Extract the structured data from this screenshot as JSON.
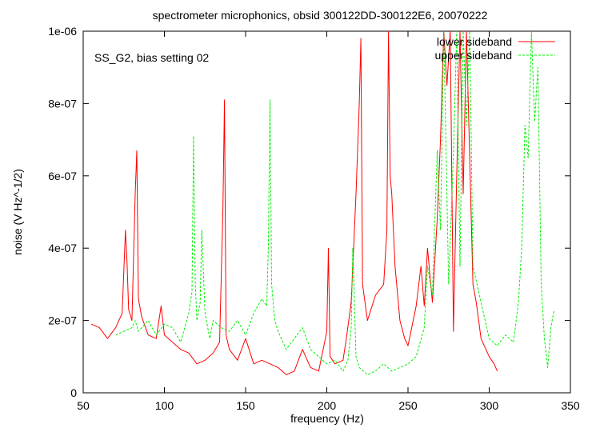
{
  "chart_data": {
    "type": "line",
    "title": "spectrometer microphonics, obsid 300122DD-300122E6, 20070222",
    "annotation": "SS_G2, bias setting 02",
    "xlabel": "frequency (Hz)",
    "ylabel": "noise (V Hz^-1/2)",
    "xlim": [
      50,
      350
    ],
    "ylim": [
      0,
      1e-06
    ],
    "xticks": [
      50,
      100,
      150,
      200,
      250,
      300,
      350
    ],
    "xtick_labels": [
      "50",
      "100",
      "150",
      "200",
      "250",
      "300",
      "350"
    ],
    "yticks": [
      0,
      2e-07,
      4e-07,
      6e-07,
      8e-07,
      1e-06
    ],
    "ytick_labels": [
      "0",
      "2e-07",
      "4e-07",
      "6e-07",
      "8e-07",
      "1e-06"
    ],
    "grid": false,
    "legend_position": "top-right",
    "series": [
      {
        "name": "lower sideband",
        "color": "#ff0000",
        "dash": "solid",
        "x": [
          55,
          60,
          65,
          70,
          74,
          76,
          77,
          78,
          80,
          82,
          83,
          84,
          86,
          90,
          95,
          98,
          100,
          105,
          110,
          115,
          120,
          125,
          130,
          134,
          136,
          137,
          138,
          140,
          145,
          150,
          155,
          160,
          165,
          170,
          175,
          180,
          185,
          190,
          195,
          200,
          201,
          202,
          205,
          210,
          212,
          215,
          218,
          220,
          221,
          222,
          225,
          230,
          235,
          237,
          238,
          239,
          240,
          242,
          245,
          248,
          250,
          255,
          258,
          260,
          262,
          265,
          268,
          270,
          272,
          274,
          276,
          278,
          280,
          282,
          284,
          286,
          288,
          290,
          292,
          295,
          300,
          303,
          305
        ],
        "y": [
          1.9e-07,
          1.8e-07,
          1.5e-07,
          1.8e-07,
          2.2e-07,
          4.5e-07,
          3.6e-07,
          2.3e-07,
          2e-07,
          5.5e-07,
          6.7e-07,
          2.6e-07,
          2.1e-07,
          1.6e-07,
          1.5e-07,
          2.4e-07,
          1.6e-07,
          1.4e-07,
          1.2e-07,
          1.1e-07,
          8e-08,
          9e-08,
          1.1e-07,
          1.4e-07,
          5e-07,
          8.1e-07,
          1.6e-07,
          1.2e-07,
          9e-08,
          1.5e-07,
          8e-08,
          9e-08,
          8e-08,
          7e-08,
          5e-08,
          6e-08,
          1.2e-07,
          7e-08,
          6e-08,
          1.7e-07,
          4e-07,
          1e-07,
          8e-08,
          9e-08,
          1.5e-07,
          2.5e-07,
          5.5e-07,
          8e-07,
          9.8e-07,
          3e-07,
          2e-07,
          2.7e-07,
          3e-07,
          4.5e-07,
          1e-06,
          6e-07,
          5.5e-07,
          3.5e-07,
          2e-07,
          1.5e-07,
          1.3e-07,
          2.4e-07,
          3.5e-07,
          2.4e-07,
          4e-07,
          2.5e-07,
          4.8e-07,
          7e-07,
          1e-06,
          8.5e-07,
          1e-06,
          1.7e-07,
          6e-07,
          1e-06,
          5.5e-07,
          1e-06,
          6.5e-07,
          3e-07,
          2.5e-07,
          1.5e-07,
          1e-07,
          8e-08,
          6e-08
        ]
      },
      {
        "name": "upper sideband",
        "color": "#00ee00",
        "dash": "dashed",
        "x": [
          70,
          80,
          82,
          84,
          90,
          95,
          100,
          105,
          110,
          115,
          117,
          118,
          119,
          120,
          122,
          123,
          125,
          128,
          130,
          135,
          140,
          145,
          150,
          155,
          160,
          163,
          164,
          165,
          166,
          168,
          170,
          175,
          180,
          185,
          190,
          195,
          200,
          205,
          210,
          213,
          215,
          216,
          218,
          220,
          225,
          230,
          235,
          240,
          245,
          250,
          255,
          260,
          262,
          265,
          268,
          270,
          272,
          275,
          278,
          280,
          282,
          284,
          286,
          288,
          290,
          295,
          300,
          305,
          310,
          315,
          318,
          320,
          322,
          324,
          326,
          328,
          330,
          332,
          334,
          336,
          338,
          340
        ],
        "y": [
          1.6e-07,
          1.8e-07,
          2e-07,
          1.7e-07,
          2e-07,
          1.6e-07,
          1.9e-07,
          1.8e-07,
          1.4e-07,
          2.2e-07,
          2.8e-07,
          7.1e-07,
          3e-07,
          2e-07,
          2.5e-07,
          4.5e-07,
          2.2e-07,
          1.5e-07,
          2e-07,
          1.8e-07,
          1.7e-07,
          2e-07,
          1.6e-07,
          2.2e-07,
          2.6e-07,
          2.4e-07,
          4e-07,
          8.1e-07,
          3e-07,
          2e-07,
          1.7e-07,
          1.2e-07,
          1.5e-07,
          1.8e-07,
          1.2e-07,
          1e-07,
          8e-08,
          9e-08,
          6e-08,
          9e-08,
          1.8e-07,
          4e-07,
          1e-07,
          7e-08,
          5e-08,
          6e-08,
          8e-08,
          6e-08,
          7e-08,
          8e-08,
          1e-07,
          1.8e-07,
          3.5e-07,
          2.7e-07,
          6.7e-07,
          4.5e-07,
          1e-06,
          3e-07,
          6.6e-07,
          1e-06,
          3.5e-07,
          1e-06,
          7.4e-07,
          1e-06,
          3.5e-07,
          2.5e-07,
          1.5e-07,
          1.3e-07,
          1.6e-07,
          1.4e-07,
          2.5e-07,
          4e-07,
          7.4e-07,
          6.5e-07,
          1e-06,
          7.5e-07,
          9e-07,
          3e-07,
          1.5e-07,
          7e-08,
          1.8e-07,
          2.3e-07
        ]
      }
    ]
  }
}
